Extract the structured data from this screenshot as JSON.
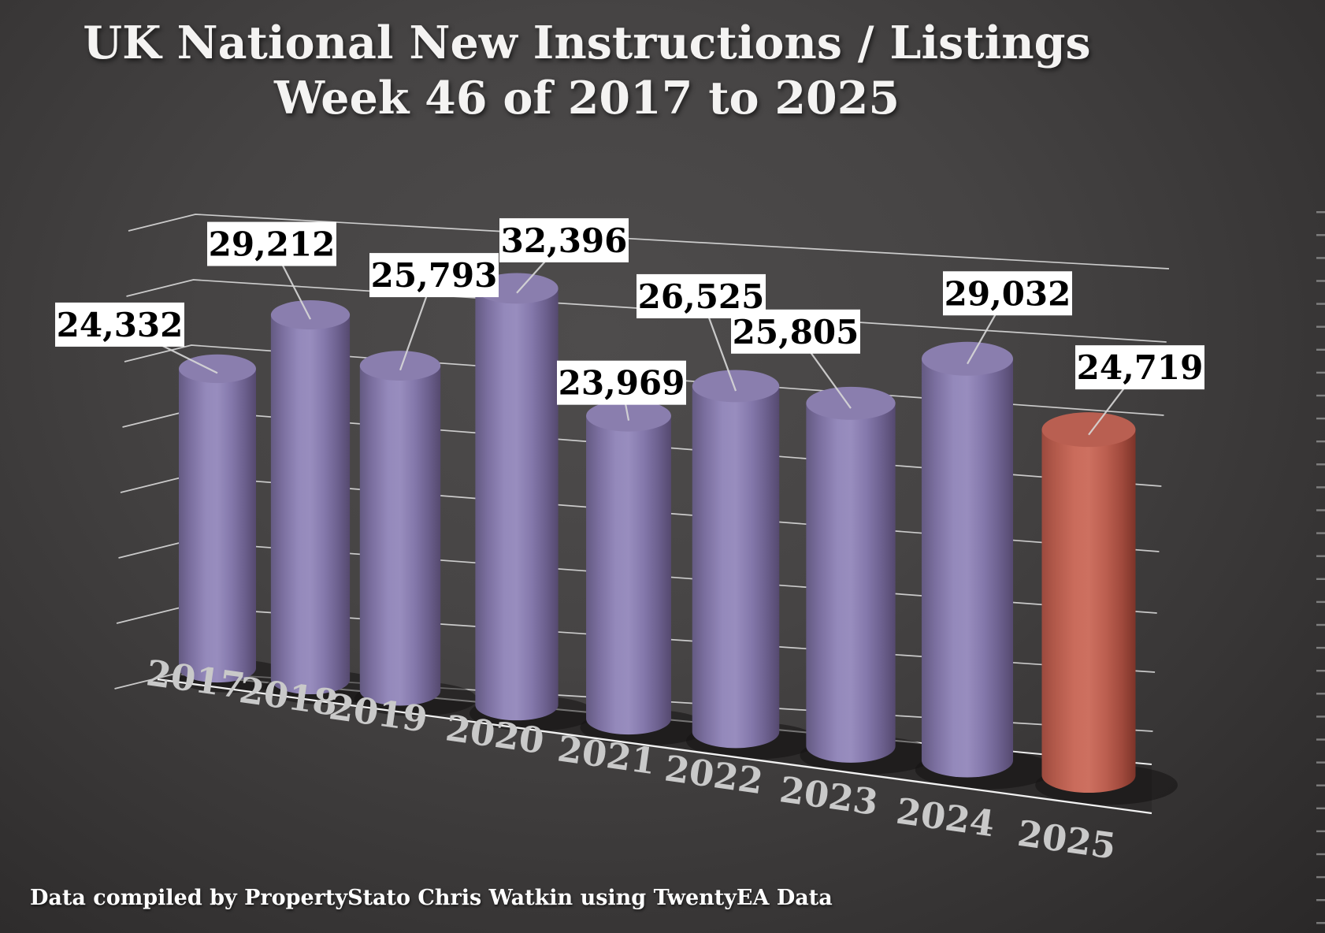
{
  "title": {
    "line1": "UK National New Instructions / Listings",
    "line2": "Week 46 of 2017 to 2025"
  },
  "source_note": "Data compiled by PropertyStato Chris Watkin using TwentyEA Data",
  "chart_data": {
    "type": "bar",
    "style": "3d-cylinder",
    "title": "UK National New Instructions / Listings Week 46 of 2017 to 2025",
    "categories": [
      "2017",
      "2018",
      "2019",
      "2020",
      "2021",
      "2022",
      "2023",
      "2024",
      "2025"
    ],
    "values": [
      24332,
      29212,
      25793,
      32396,
      23969,
      26525,
      25805,
      29032,
      24719
    ],
    "value_labels": [
      "24,332",
      "29,212",
      "25,793",
      "32,396",
      "23,969",
      "26,525",
      "25,805",
      "29,032",
      "24,719"
    ],
    "highlight_category": "2025",
    "xlabel": "",
    "ylabel": "",
    "legend": "none",
    "grid": "on",
    "colors": {
      "bar_default": "#8d81b2",
      "bar_highlight": "#c3685a",
      "label_box_bg": "#ffffff",
      "label_box_text": "#000000",
      "grid_line": "#e3e3e3",
      "year_label": "#c9c9c9",
      "title_text": "#f4f3f2",
      "background": "#3f3d3d"
    }
  }
}
